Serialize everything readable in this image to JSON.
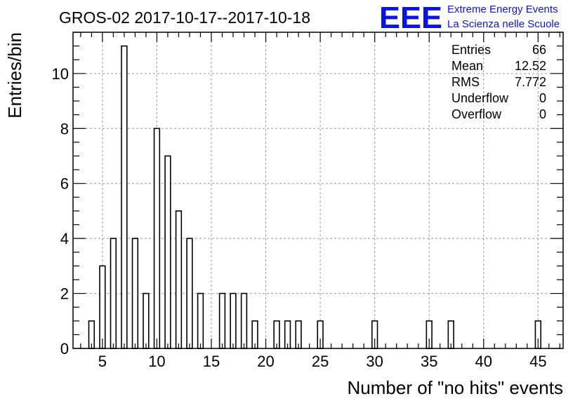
{
  "logo": {
    "mark": "EEE",
    "line1": "Extreme Energy Events",
    "line2": "La Scienza nelle Scuole",
    "color": "#0a14e6"
  },
  "stats": [
    {
      "label": "Entries",
      "value": "66"
    },
    {
      "label": "Mean",
      "value": "12.52"
    },
    {
      "label": "RMS",
      "value": "7.772"
    },
    {
      "label": "Underflow",
      "value": "0"
    },
    {
      "label": "Overflow",
      "value": "0"
    }
  ],
  "chart_data": {
    "type": "bar",
    "title": "GROS-02 2017-10-17--2017-10-18",
    "xlabel": "Number of \"no hits\" events",
    "ylabel": "Entries/bin",
    "xlim": [
      2.3,
      47.3
    ],
    "ylim": [
      0,
      11.5
    ],
    "xticks": [
      5,
      10,
      15,
      20,
      25,
      30,
      35,
      40,
      45
    ],
    "yticks": [
      0,
      2,
      4,
      6,
      8,
      10
    ],
    "grid": true,
    "bin_width": 0.5,
    "bars": [
      {
        "x": 4,
        "y": 1
      },
      {
        "x": 5,
        "y": 3
      },
      {
        "x": 6,
        "y": 4
      },
      {
        "x": 7,
        "y": 11
      },
      {
        "x": 8,
        "y": 4
      },
      {
        "x": 9,
        "y": 2
      },
      {
        "x": 10,
        "y": 8
      },
      {
        "x": 11,
        "y": 7
      },
      {
        "x": 12,
        "y": 5
      },
      {
        "x": 13,
        "y": 4
      },
      {
        "x": 14,
        "y": 2
      },
      {
        "x": 16,
        "y": 2
      },
      {
        "x": 17,
        "y": 2
      },
      {
        "x": 18,
        "y": 2
      },
      {
        "x": 19,
        "y": 1
      },
      {
        "x": 21,
        "y": 1
      },
      {
        "x": 22,
        "y": 1
      },
      {
        "x": 23,
        "y": 1
      },
      {
        "x": 25,
        "y": 1
      },
      {
        "x": 30,
        "y": 1
      },
      {
        "x": 35,
        "y": 1
      },
      {
        "x": 37,
        "y": 1
      },
      {
        "x": 45,
        "y": 1
      }
    ]
  }
}
